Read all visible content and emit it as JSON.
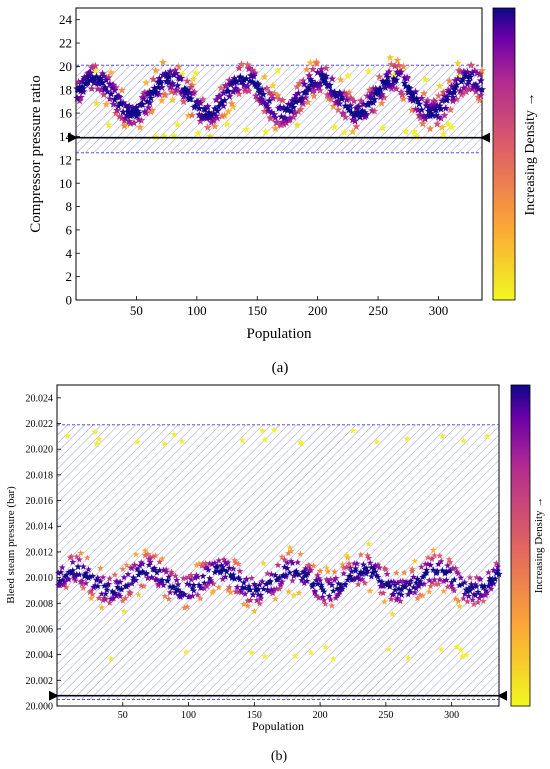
{
  "figure": {
    "caption_a": "(a)",
    "caption_b": "(b)"
  },
  "colors": {
    "high_density": "#1d0c8c",
    "mid_density": "#b32c8e",
    "low_density": "#f6ee21",
    "band_fill": "#4a4ad8",
    "marker_line": "#000000"
  },
  "chart_data": [
    {
      "type": "scatter",
      "panel": "a",
      "xlabel": "Population",
      "ylabel": "Compressor pressure ratio",
      "colorbar_label": "Increasing Density →",
      "xlim": [
        0,
        336
      ],
      "ylim": [
        0,
        25
      ],
      "xticks": [
        50,
        100,
        150,
        200,
        250,
        300
      ],
      "yticks": [
        0,
        2,
        4,
        6,
        8,
        10,
        12,
        14,
        16,
        18,
        20,
        22,
        24
      ],
      "grid": false,
      "marker": "star",
      "colormap": "plasma",
      "band": [
        12.6,
        20.1
      ],
      "reference_line": 13.9,
      "density_model": {
        "center_start": 17.5,
        "amplitude": 1.5,
        "period": 62,
        "sigma": 1.15,
        "outlier_low": 13.9,
        "outlier_high": 19.9
      },
      "num_points": 336
    },
    {
      "type": "scatter",
      "panel": "b",
      "xlabel": "Population",
      "ylabel": "Bleed steam pressure (bar)",
      "colorbar_label": "Increasing Density →",
      "xlim": [
        0,
        336
      ],
      "ylim": [
        20.0,
        20.025
      ],
      "xticks": [
        50,
        100,
        150,
        200,
        250,
        300
      ],
      "yticks": [
        20.0,
        20.002,
        20.004,
        20.006,
        20.008,
        20.01,
        20.012,
        20.014,
        20.016,
        20.018,
        20.02,
        20.022,
        20.024
      ],
      "grid": false,
      "marker": "star",
      "colormap": "plasma",
      "band": [
        20.0005,
        20.0219
      ],
      "reference_line": 20.0008,
      "density_model": {
        "center_start": 20.0098,
        "amplitude": 0.0008,
        "period": 55,
        "sigma": 0.0011,
        "outlier_low": 20.0035,
        "outlier_high": 20.0215
      },
      "num_points": 336
    }
  ]
}
